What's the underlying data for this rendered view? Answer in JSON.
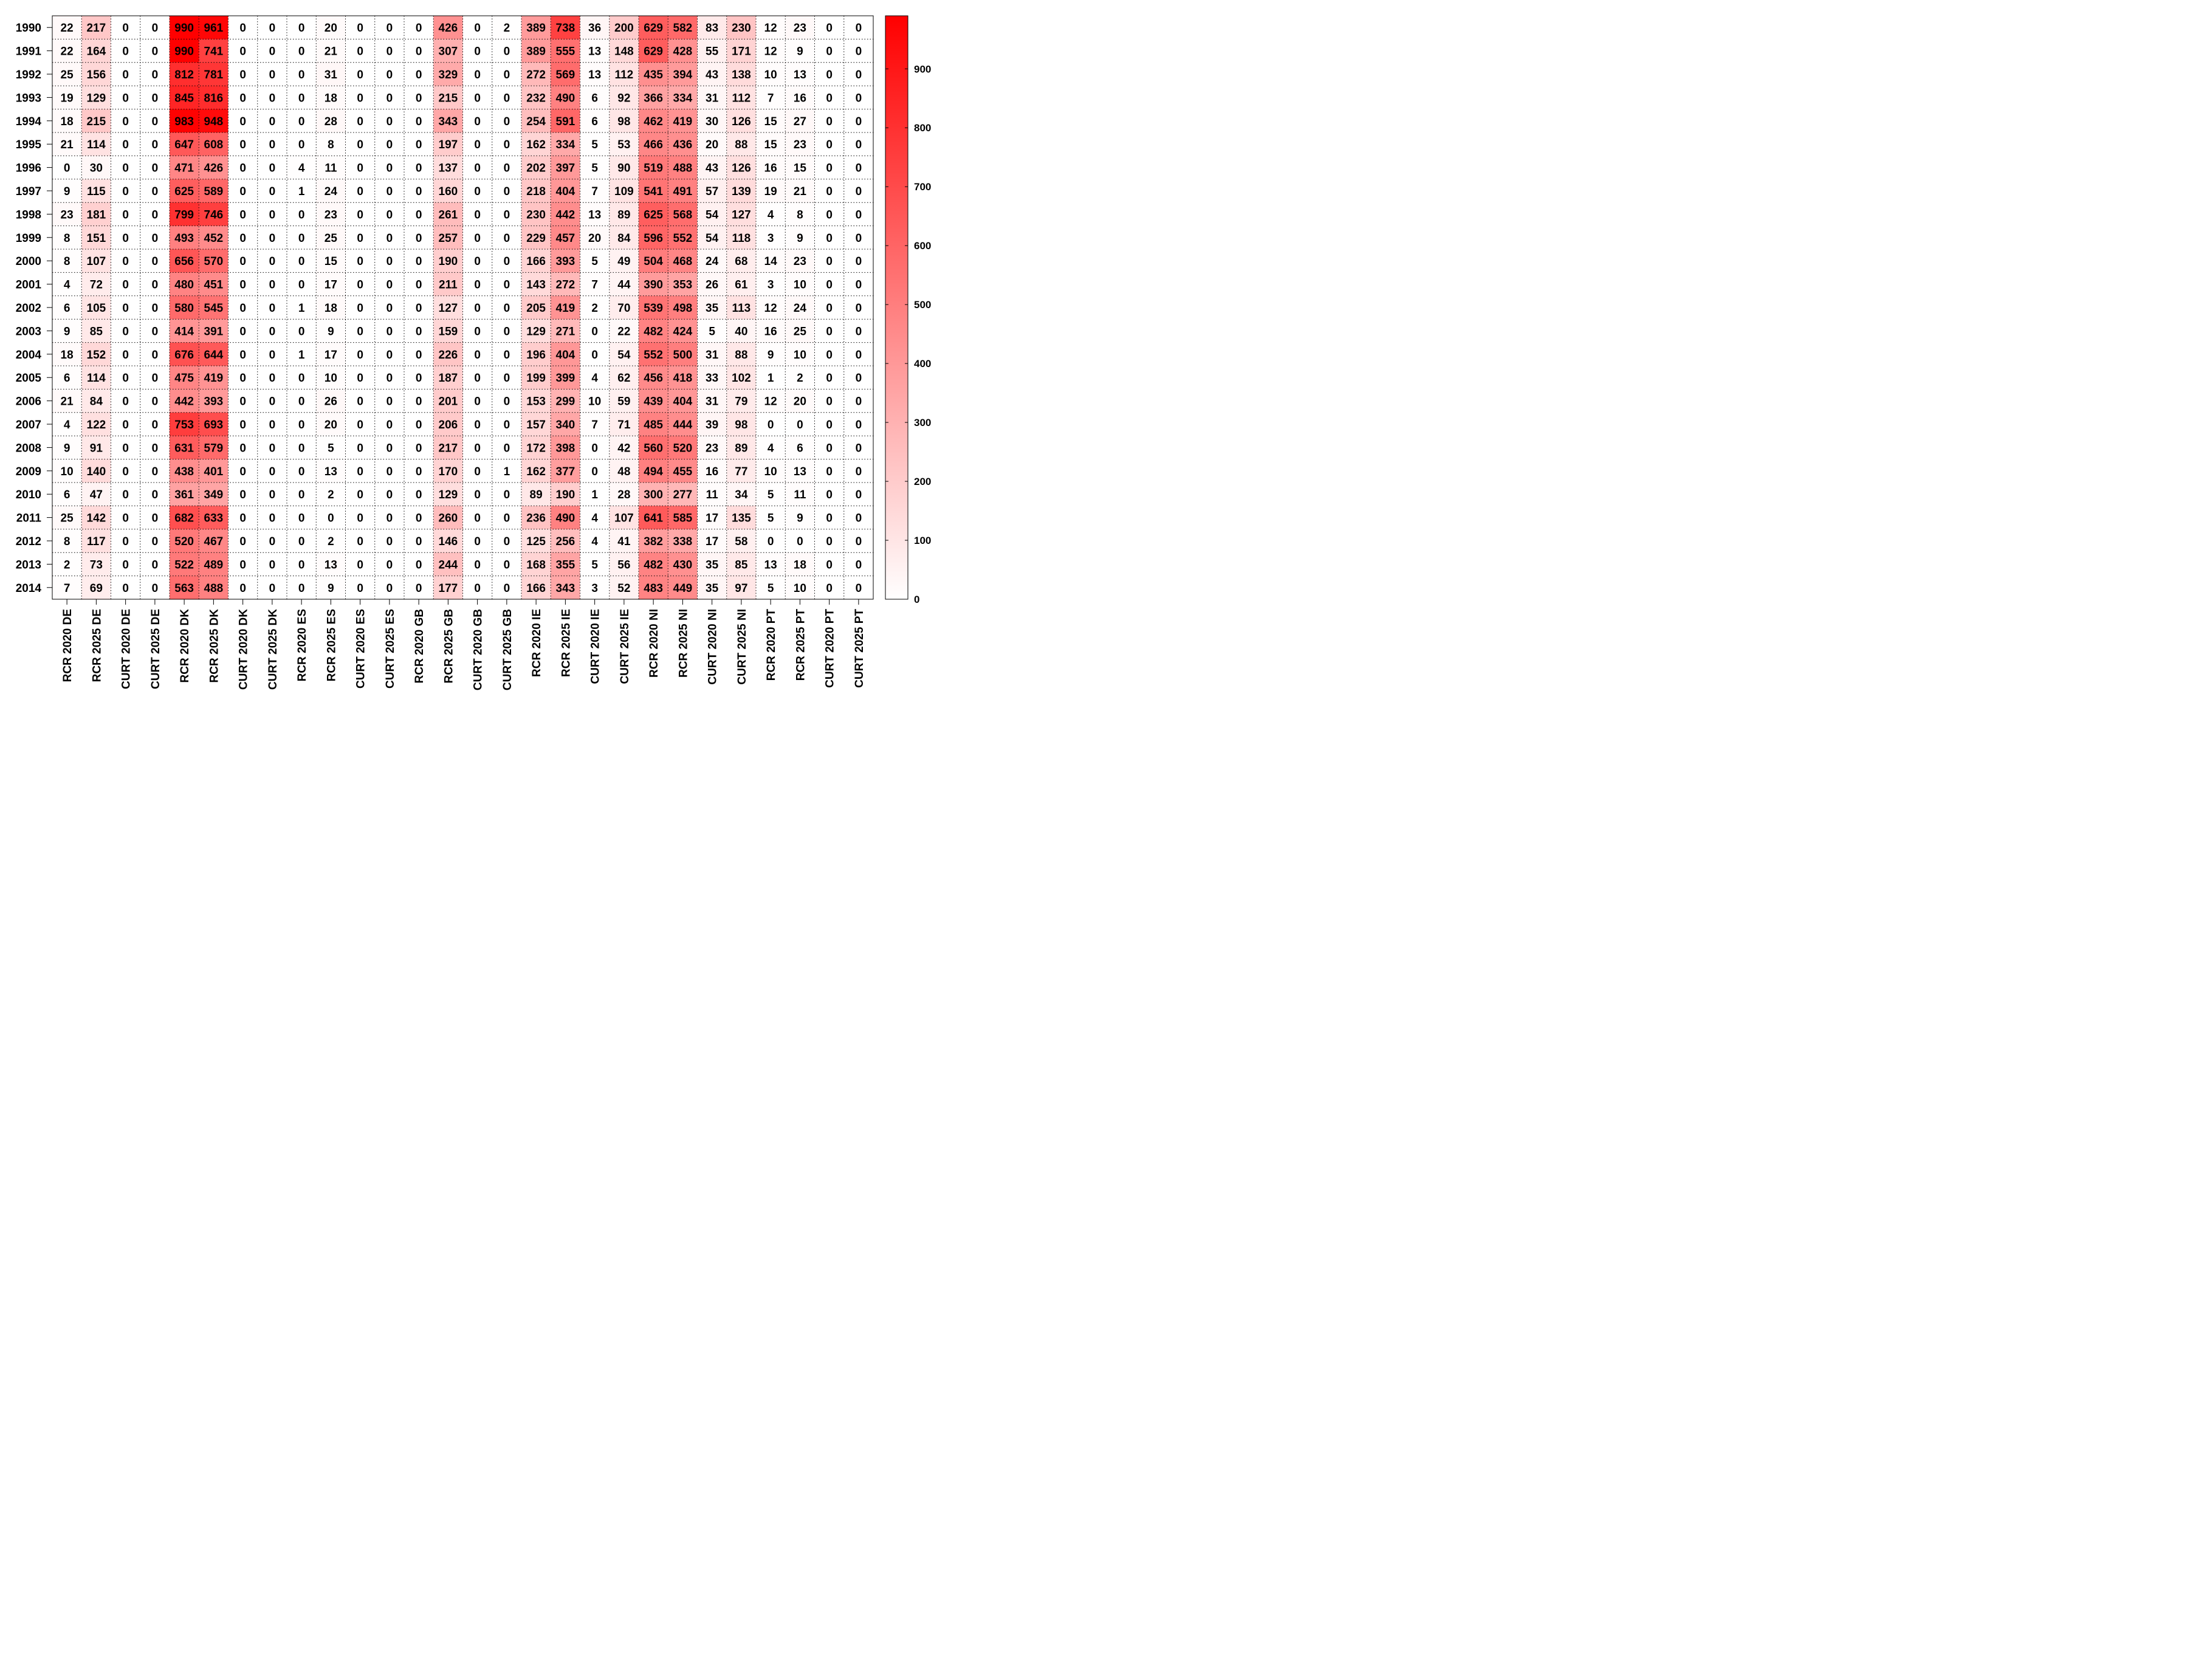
{
  "chart_data": {
    "type": "heatmap",
    "title": "",
    "xlabel": "",
    "ylabel": "",
    "grid": true,
    "colormap": {
      "low": "#ffffff",
      "high": "#ff0000"
    },
    "value_range": [
      0,
      990
    ],
    "colorbar": {
      "position": "right",
      "ticks": [
        0,
        100,
        200,
        300,
        400,
        500,
        600,
        700,
        800,
        900
      ]
    },
    "columns": [
      "RCR 2020 DE",
      "RCR 2025 DE",
      "CURT 2020 DE",
      "CURT 2025 DE",
      "RCR 2020 DK",
      "RCR 2025 DK",
      "CURT 2020 DK",
      "CURT 2025 DK",
      "RCR 2020 ES",
      "RCR 2025 ES",
      "CURT 2020 ES",
      "CURT 2025 ES",
      "RCR 2020 GB",
      "RCR 2025 GB",
      "CURT 2020 GB",
      "CURT 2025 GB",
      "RCR 2020 IE",
      "RCR 2025 IE",
      "CURT 2020 IE",
      "CURT 2025 IE",
      "RCR 2020 NI",
      "RCR 2025 NI",
      "CURT 2020 NI",
      "CURT 2025 NI",
      "RCR 2020 PT",
      "RCR 2025 PT",
      "CURT 2020 PT",
      "CURT 2025 PT"
    ],
    "rows": [
      "1990",
      "1991",
      "1992",
      "1993",
      "1994",
      "1995",
      "1996",
      "1997",
      "1998",
      "1999",
      "2000",
      "2001",
      "2002",
      "2003",
      "2004",
      "2005",
      "2006",
      "2007",
      "2008",
      "2009",
      "2010",
      "2011",
      "2012",
      "2013",
      "2014"
    ],
    "values": [
      [
        22,
        217,
        0,
        0,
        990,
        961,
        0,
        0,
        0,
        20,
        0,
        0,
        0,
        426,
        0,
        2,
        389,
        738,
        36,
        200,
        629,
        582,
        83,
        230,
        12,
        23,
        0,
        0
      ],
      [
        22,
        164,
        0,
        0,
        990,
        741,
        0,
        0,
        0,
        21,
        0,
        0,
        0,
        307,
        0,
        0,
        389,
        555,
        13,
        148,
        629,
        428,
        55,
        171,
        12,
        9,
        0,
        0
      ],
      [
        25,
        156,
        0,
        0,
        812,
        781,
        0,
        0,
        0,
        31,
        0,
        0,
        0,
        329,
        0,
        0,
        272,
        569,
        13,
        112,
        435,
        394,
        43,
        138,
        10,
        13,
        0,
        0
      ],
      [
        19,
        129,
        0,
        0,
        845,
        816,
        0,
        0,
        0,
        18,
        0,
        0,
        0,
        215,
        0,
        0,
        232,
        490,
        6,
        92,
        366,
        334,
        31,
        112,
        7,
        16,
        0,
        0
      ],
      [
        18,
        215,
        0,
        0,
        983,
        948,
        0,
        0,
        0,
        28,
        0,
        0,
        0,
        343,
        0,
        0,
        254,
        591,
        6,
        98,
        462,
        419,
        30,
        126,
        15,
        27,
        0,
        0
      ],
      [
        21,
        114,
        0,
        0,
        647,
        608,
        0,
        0,
        0,
        8,
        0,
        0,
        0,
        197,
        0,
        0,
        162,
        334,
        5,
        53,
        466,
        436,
        20,
        88,
        15,
        23,
        0,
        0
      ],
      [
        0,
        30,
        0,
        0,
        471,
        426,
        0,
        0,
        4,
        11,
        0,
        0,
        0,
        137,
        0,
        0,
        202,
        397,
        5,
        90,
        519,
        488,
        43,
        126,
        16,
        15,
        0,
        0
      ],
      [
        9,
        115,
        0,
        0,
        625,
        589,
        0,
        0,
        1,
        24,
        0,
        0,
        0,
        160,
        0,
        0,
        218,
        404,
        7,
        109,
        541,
        491,
        57,
        139,
        19,
        21,
        0,
        0
      ],
      [
        23,
        181,
        0,
        0,
        799,
        746,
        0,
        0,
        0,
        23,
        0,
        0,
        0,
        261,
        0,
        0,
        230,
        442,
        13,
        89,
        625,
        568,
        54,
        127,
        4,
        8,
        0,
        0
      ],
      [
        8,
        151,
        0,
        0,
        493,
        452,
        0,
        0,
        0,
        25,
        0,
        0,
        0,
        257,
        0,
        0,
        229,
        457,
        20,
        84,
        596,
        552,
        54,
        118,
        3,
        9,
        0,
        0
      ],
      [
        8,
        107,
        0,
        0,
        656,
        570,
        0,
        0,
        0,
        15,
        0,
        0,
        0,
        190,
        0,
        0,
        166,
        393,
        5,
        49,
        504,
        468,
        24,
        68,
        14,
        23,
        0,
        0
      ],
      [
        4,
        72,
        0,
        0,
        480,
        451,
        0,
        0,
        0,
        17,
        0,
        0,
        0,
        211,
        0,
        0,
        143,
        272,
        7,
        44,
        390,
        353,
        26,
        61,
        3,
        10,
        0,
        0
      ],
      [
        6,
        105,
        0,
        0,
        580,
        545,
        0,
        0,
        1,
        18,
        0,
        0,
        0,
        127,
        0,
        0,
        205,
        419,
        2,
        70,
        539,
        498,
        35,
        113,
        12,
        24,
        0,
        0
      ],
      [
        9,
        85,
        0,
        0,
        414,
        391,
        0,
        0,
        0,
        9,
        0,
        0,
        0,
        159,
        0,
        0,
        129,
        271,
        0,
        22,
        482,
        424,
        5,
        40,
        16,
        25,
        0,
        0
      ],
      [
        18,
        152,
        0,
        0,
        676,
        644,
        0,
        0,
        1,
        17,
        0,
        0,
        0,
        226,
        0,
        0,
        196,
        404,
        0,
        54,
        552,
        500,
        31,
        88,
        9,
        10,
        0,
        0
      ],
      [
        6,
        114,
        0,
        0,
        475,
        419,
        0,
        0,
        0,
        10,
        0,
        0,
        0,
        187,
        0,
        0,
        199,
        399,
        4,
        62,
        456,
        418,
        33,
        102,
        1,
        2,
        0,
        0
      ],
      [
        21,
        84,
        0,
        0,
        442,
        393,
        0,
        0,
        0,
        26,
        0,
        0,
        0,
        201,
        0,
        0,
        153,
        299,
        10,
        59,
        439,
        404,
        31,
        79,
        12,
        20,
        0,
        0
      ],
      [
        4,
        122,
        0,
        0,
        753,
        693,
        0,
        0,
        0,
        20,
        0,
        0,
        0,
        206,
        0,
        0,
        157,
        340,
        7,
        71,
        485,
        444,
        39,
        98,
        0,
        0,
        0,
        0
      ],
      [
        9,
        91,
        0,
        0,
        631,
        579,
        0,
        0,
        0,
        5,
        0,
        0,
        0,
        217,
        0,
        0,
        172,
        398,
        0,
        42,
        560,
        520,
        23,
        89,
        4,
        6,
        0,
        0
      ],
      [
        10,
        140,
        0,
        0,
        438,
        401,
        0,
        0,
        0,
        13,
        0,
        0,
        0,
        170,
        0,
        1,
        162,
        377,
        0,
        48,
        494,
        455,
        16,
        77,
        10,
        13,
        0,
        0
      ],
      [
        6,
        47,
        0,
        0,
        361,
        349,
        0,
        0,
        0,
        2,
        0,
        0,
        0,
        129,
        0,
        0,
        89,
        190,
        1,
        28,
        300,
        277,
        11,
        34,
        5,
        11,
        0,
        0
      ],
      [
        25,
        142,
        0,
        0,
        682,
        633,
        0,
        0,
        0,
        0,
        0,
        0,
        0,
        260,
        0,
        0,
        236,
        490,
        4,
        107,
        641,
        585,
        17,
        135,
        5,
        9,
        0,
        0
      ],
      [
        8,
        117,
        0,
        0,
        520,
        467,
        0,
        0,
        0,
        2,
        0,
        0,
        0,
        146,
        0,
        0,
        125,
        256,
        4,
        41,
        382,
        338,
        17,
        58,
        0,
        0,
        0,
        0
      ],
      [
        2,
        73,
        0,
        0,
        522,
        489,
        0,
        0,
        0,
        13,
        0,
        0,
        0,
        244,
        0,
        0,
        168,
        355,
        5,
        56,
        482,
        430,
        35,
        85,
        13,
        18,
        0,
        0
      ],
      [
        7,
        69,
        0,
        0,
        563,
        488,
        0,
        0,
        0,
        9,
        0,
        0,
        0,
        177,
        0,
        0,
        166,
        343,
        3,
        52,
        483,
        449,
        35,
        97,
        5,
        10,
        0,
        0
      ]
    ]
  }
}
